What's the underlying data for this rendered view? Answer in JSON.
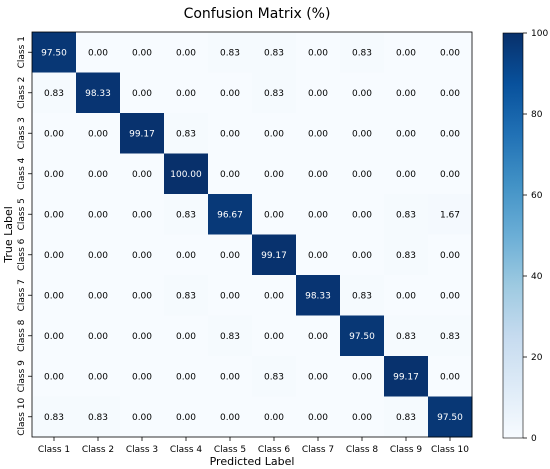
{
  "chart_data": {
    "type": "heatmap",
    "title": "Confusion Matrix (%)",
    "xlabel": "Predicted Label",
    "ylabel": "True Label",
    "x_categories": [
      "Class 1",
      "Class 2",
      "Class 3",
      "Class 4",
      "Class 5",
      "Class 6",
      "Class 7",
      "Class 8",
      "Class 9",
      "Class 10"
    ],
    "y_categories": [
      "Class 1",
      "Class 2",
      "Class 3",
      "Class 4",
      "Class 5",
      "Class 6",
      "Class 7",
      "Class 8",
      "Class 9",
      "Class 10"
    ],
    "values": [
      [
        97.5,
        0.0,
        0.0,
        0.0,
        0.83,
        0.83,
        0.0,
        0.83,
        0.0,
        0.0
      ],
      [
        0.83,
        98.33,
        0.0,
        0.0,
        0.0,
        0.83,
        0.0,
        0.0,
        0.0,
        0.0
      ],
      [
        0.0,
        0.0,
        99.17,
        0.83,
        0.0,
        0.0,
        0.0,
        0.0,
        0.0,
        0.0
      ],
      [
        0.0,
        0.0,
        0.0,
        100.0,
        0.0,
        0.0,
        0.0,
        0.0,
        0.0,
        0.0
      ],
      [
        0.0,
        0.0,
        0.0,
        0.83,
        96.67,
        0.0,
        0.0,
        0.0,
        0.83,
        1.67
      ],
      [
        0.0,
        0.0,
        0.0,
        0.0,
        0.0,
        99.17,
        0.0,
        0.0,
        0.83,
        0.0
      ],
      [
        0.0,
        0.0,
        0.0,
        0.83,
        0.0,
        0.0,
        98.33,
        0.83,
        0.0,
        0.0
      ],
      [
        0.0,
        0.0,
        0.0,
        0.0,
        0.83,
        0.0,
        0.0,
        97.5,
        0.83,
        0.83
      ],
      [
        0.0,
        0.0,
        0.0,
        0.0,
        0.0,
        0.83,
        0.0,
        0.0,
        99.17,
        0.0
      ],
      [
        0.83,
        0.83,
        0.0,
        0.0,
        0.0,
        0.0,
        0.0,
        0.0,
        0.83,
        97.5
      ]
    ],
    "value_format": "0.00",
    "colormap": "Blues",
    "colormap_colors": [
      "#f7fbff",
      "#08306b"
    ],
    "colorbar_range": [
      0,
      100
    ],
    "colorbar_ticks": [
      0,
      20,
      40,
      60,
      80,
      100
    ],
    "grid": false,
    "legend": "colorbar-right"
  }
}
